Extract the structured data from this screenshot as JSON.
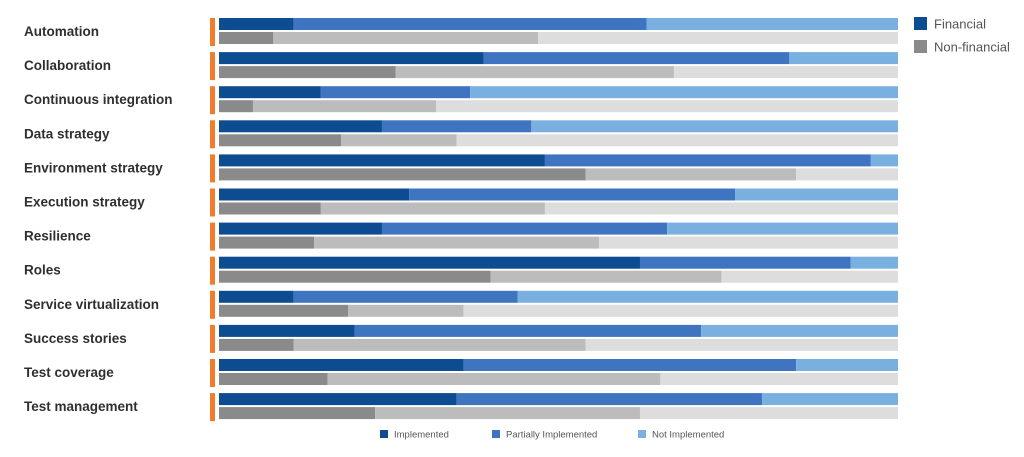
{
  "colors": {
    "accent": "#f07c2c",
    "financial": [
      "#0e4c92",
      "#3f74c0",
      "#7ab0e0"
    ],
    "non_financial": [
      "#8a8a8a",
      "#bcbcbc",
      "#dddddd"
    ],
    "legend_financial": "#0e4c92",
    "legend_non_financial": "#8a8a8a"
  },
  "chart_data": {
    "type": "bar",
    "orientation": "horizontal",
    "stacked": true,
    "unit": "fraction",
    "categories": [
      "Automation",
      "Collaboration",
      "Continuous integration",
      "Data strategy",
      "Environment strategy",
      "Execution strategy",
      "Resilience",
      "Roles",
      "Service virtualization",
      "Success stories",
      "Test coverage",
      "Test management"
    ],
    "groups": [
      "Financial",
      "Non-financial"
    ],
    "segments": [
      "Implemented",
      "Partially Implemented",
      "Not Implemented"
    ],
    "series": [
      {
        "name": "Financial",
        "implemented": [
          0.11,
          0.39,
          0.15,
          0.24,
          0.48,
          0.28,
          0.24,
          0.62,
          0.11,
          0.2,
          0.36,
          0.35
        ],
        "partially_implemented": [
          0.52,
          0.45,
          0.22,
          0.22,
          0.48,
          0.48,
          0.42,
          0.31,
          0.33,
          0.51,
          0.49,
          0.45
        ],
        "not_implemented": [
          0.37,
          0.16,
          0.63,
          0.54,
          0.04,
          0.24,
          0.34,
          0.07,
          0.56,
          0.29,
          0.15,
          0.2
        ]
      },
      {
        "name": "Non-financial",
        "implemented": [
          0.08,
          0.26,
          0.05,
          0.18,
          0.54,
          0.15,
          0.14,
          0.4,
          0.19,
          0.11,
          0.16,
          0.23
        ],
        "partially_implemented": [
          0.39,
          0.41,
          0.27,
          0.17,
          0.31,
          0.33,
          0.42,
          0.34,
          0.17,
          0.43,
          0.49,
          0.39
        ],
        "not_implemented": [
          0.53,
          0.33,
          0.68,
          0.65,
          0.15,
          0.52,
          0.44,
          0.26,
          0.64,
          0.46,
          0.35,
          0.38
        ]
      }
    ],
    "xlim": [
      0,
      1
    ],
    "title": "",
    "xlabel": "",
    "ylabel": "",
    "grid": false,
    "legend_groups": [
      "Financial",
      "Non-financial"
    ],
    "legend_groups_position": "top-right",
    "legend_segments": [
      "Implemented",
      "Partially Implemented",
      "Not Implemented"
    ],
    "legend_segments_position": "bottom"
  }
}
